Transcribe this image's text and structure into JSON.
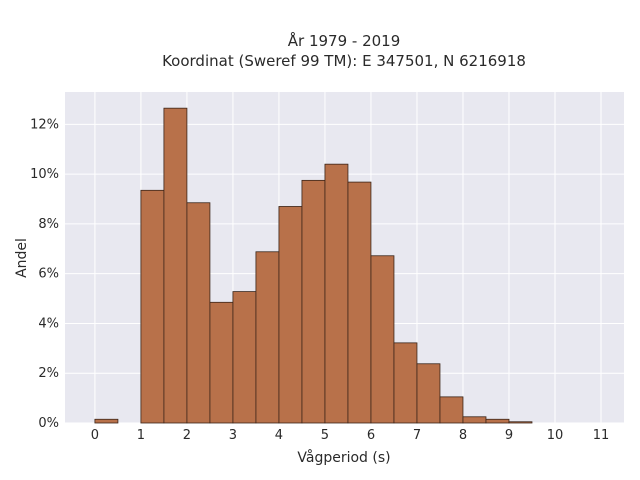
{
  "chart_data": {
    "type": "bar",
    "title_line1": "År 1979 - 2019",
    "title_line2": "Koordinat (Sweref 99 TM): E 347501, N 6216918",
    "xlabel": "Vågperiod (s)",
    "ylabel": "Andel",
    "x_ticks": [
      "0",
      "1",
      "2",
      "3",
      "4",
      "5",
      "6",
      "7",
      "8",
      "9",
      "10",
      "11"
    ],
    "y_ticks": [
      "0%",
      "2%",
      "4%",
      "6%",
      "8%",
      "10%",
      "12%"
    ],
    "xlim": [
      -0.65,
      11.5
    ],
    "ylim": [
      0,
      13.3
    ],
    "bin_width": 0.5,
    "bins": [
      {
        "start": 0.0,
        "value": 0.15
      },
      {
        "start": 0.5,
        "value": 0.0
      },
      {
        "start": 1.0,
        "value": 9.35
      },
      {
        "start": 1.5,
        "value": 12.65
      },
      {
        "start": 2.0,
        "value": 8.85
      },
      {
        "start": 2.5,
        "value": 4.85
      },
      {
        "start": 3.0,
        "value": 5.28
      },
      {
        "start": 3.5,
        "value": 6.88
      },
      {
        "start": 4.0,
        "value": 8.7
      },
      {
        "start": 4.5,
        "value": 9.75
      },
      {
        "start": 5.0,
        "value": 10.4
      },
      {
        "start": 5.5,
        "value": 9.68
      },
      {
        "start": 6.0,
        "value": 6.72
      },
      {
        "start": 6.5,
        "value": 3.22
      },
      {
        "start": 7.0,
        "value": 2.38
      },
      {
        "start": 7.5,
        "value": 1.05
      },
      {
        "start": 8.0,
        "value": 0.25
      },
      {
        "start": 8.5,
        "value": 0.15
      },
      {
        "start": 9.0,
        "value": 0.05
      }
    ],
    "grid": true,
    "colors": {
      "bar_fill": "#b8714a",
      "bar_stroke": "#3a2418",
      "plot_bg": "#e8e8f0",
      "grid": "#ffffff"
    }
  }
}
